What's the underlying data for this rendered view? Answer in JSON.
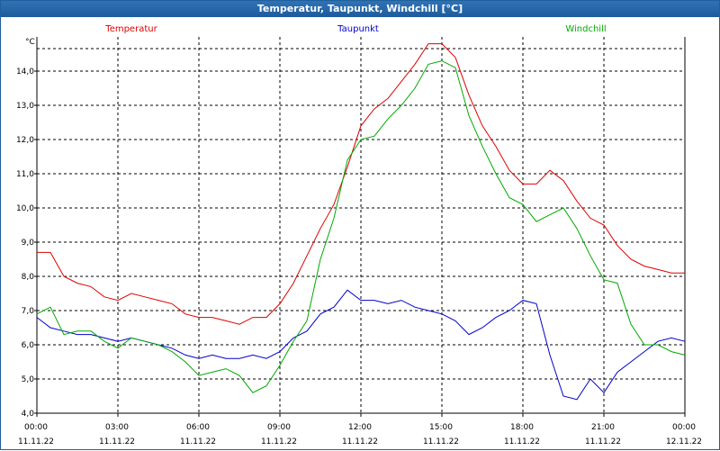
{
  "window": {
    "title": "Temperatur, Taupunkt, Windchill [°C]"
  },
  "chart_data": {
    "type": "line",
    "title": "Temperatur, Taupunkt, Windchill [°C]",
    "ylabel": "°C",
    "ylim": [
      4.0,
      15.0
    ],
    "grid": true,
    "legend_position": "top",
    "y_ticks": [
      "4,0",
      "5,0",
      "6,0",
      "7,0",
      "8,0",
      "9,0",
      "10,0",
      "11,0",
      "12,0",
      "13,0",
      "14,0"
    ],
    "x_ticks": [
      {
        "time": "00:00",
        "date": "11.11.22"
      },
      {
        "time": "03:00",
        "date": "11.11.22"
      },
      {
        "time": "06:00",
        "date": "11.11.22"
      },
      {
        "time": "09:00",
        "date": "11.11.22"
      },
      {
        "time": "12:00",
        "date": "11.11.22"
      },
      {
        "time": "15:00",
        "date": "11.11.22"
      },
      {
        "time": "18:00",
        "date": "11.11.22"
      },
      {
        "time": "21:00",
        "date": "11.11.22"
      },
      {
        "time": "00:00",
        "date": "12.11.22"
      }
    ],
    "x": [
      "00:00",
      "00:30",
      "01:00",
      "01:30",
      "02:00",
      "02:30",
      "03:00",
      "03:30",
      "04:00",
      "04:30",
      "05:00",
      "05:30",
      "06:00",
      "06:30",
      "07:00",
      "07:30",
      "08:00",
      "08:30",
      "09:00",
      "09:30",
      "10:00",
      "10:30",
      "11:00",
      "11:30",
      "12:00",
      "12:30",
      "13:00",
      "13:30",
      "14:00",
      "14:30",
      "15:00",
      "15:30",
      "16:00",
      "16:30",
      "17:00",
      "17:30",
      "18:00",
      "18:30",
      "19:00",
      "19:30",
      "20:00",
      "20:30",
      "21:00",
      "21:30",
      "22:00",
      "22:30",
      "23:00",
      "23:30",
      "00:00"
    ],
    "series": [
      {
        "name": "Temperatur",
        "color": "#dd0000",
        "values": [
          8.7,
          8.7,
          8.0,
          7.8,
          7.7,
          7.4,
          7.3,
          7.5,
          7.4,
          7.3,
          7.2,
          6.9,
          6.8,
          6.8,
          6.7,
          6.6,
          6.8,
          6.8,
          7.2,
          7.8,
          8.6,
          9.4,
          10.1,
          11.2,
          12.4,
          12.9,
          13.2,
          13.7,
          14.2,
          14.8,
          14.8,
          14.4,
          13.3,
          12.4,
          11.8,
          11.1,
          10.7,
          10.7,
          11.1,
          10.8,
          10.2,
          9.7,
          9.5,
          8.9,
          8.5,
          8.3,
          8.2,
          8.1,
          8.1
        ]
      },
      {
        "name": "Taupunkt",
        "color": "#0000cc",
        "values": [
          6.8,
          6.5,
          6.4,
          6.3,
          6.3,
          6.2,
          6.1,
          6.2,
          6.1,
          6.0,
          5.9,
          5.7,
          5.6,
          5.7,
          5.6,
          5.6,
          5.7,
          5.6,
          5.8,
          6.2,
          6.4,
          6.9,
          7.1,
          7.6,
          7.3,
          7.3,
          7.2,
          7.3,
          7.1,
          7.0,
          6.9,
          6.7,
          6.3,
          6.5,
          6.8,
          7.0,
          7.3,
          7.2,
          5.7,
          4.5,
          4.4,
          5.0,
          4.6,
          5.2,
          5.5,
          5.8,
          6.1,
          6.2,
          6.1
        ]
      },
      {
        "name": "Windchill",
        "color": "#00aa00",
        "values": [
          6.9,
          7.1,
          6.3,
          6.4,
          6.4,
          6.1,
          5.9,
          6.2,
          6.1,
          6.0,
          5.8,
          5.5,
          5.1,
          5.2,
          5.3,
          5.1,
          4.6,
          4.8,
          5.4,
          6.1,
          6.7,
          8.5,
          9.7,
          11.4,
          12.0,
          12.1,
          12.6,
          13.0,
          13.5,
          14.2,
          14.3,
          14.1,
          12.7,
          11.8,
          11.0,
          10.3,
          10.1,
          9.6,
          9.8,
          10.0,
          9.4,
          8.6,
          7.9,
          7.8,
          6.6,
          6.0,
          6.0,
          5.8,
          5.7
        ]
      }
    ]
  }
}
